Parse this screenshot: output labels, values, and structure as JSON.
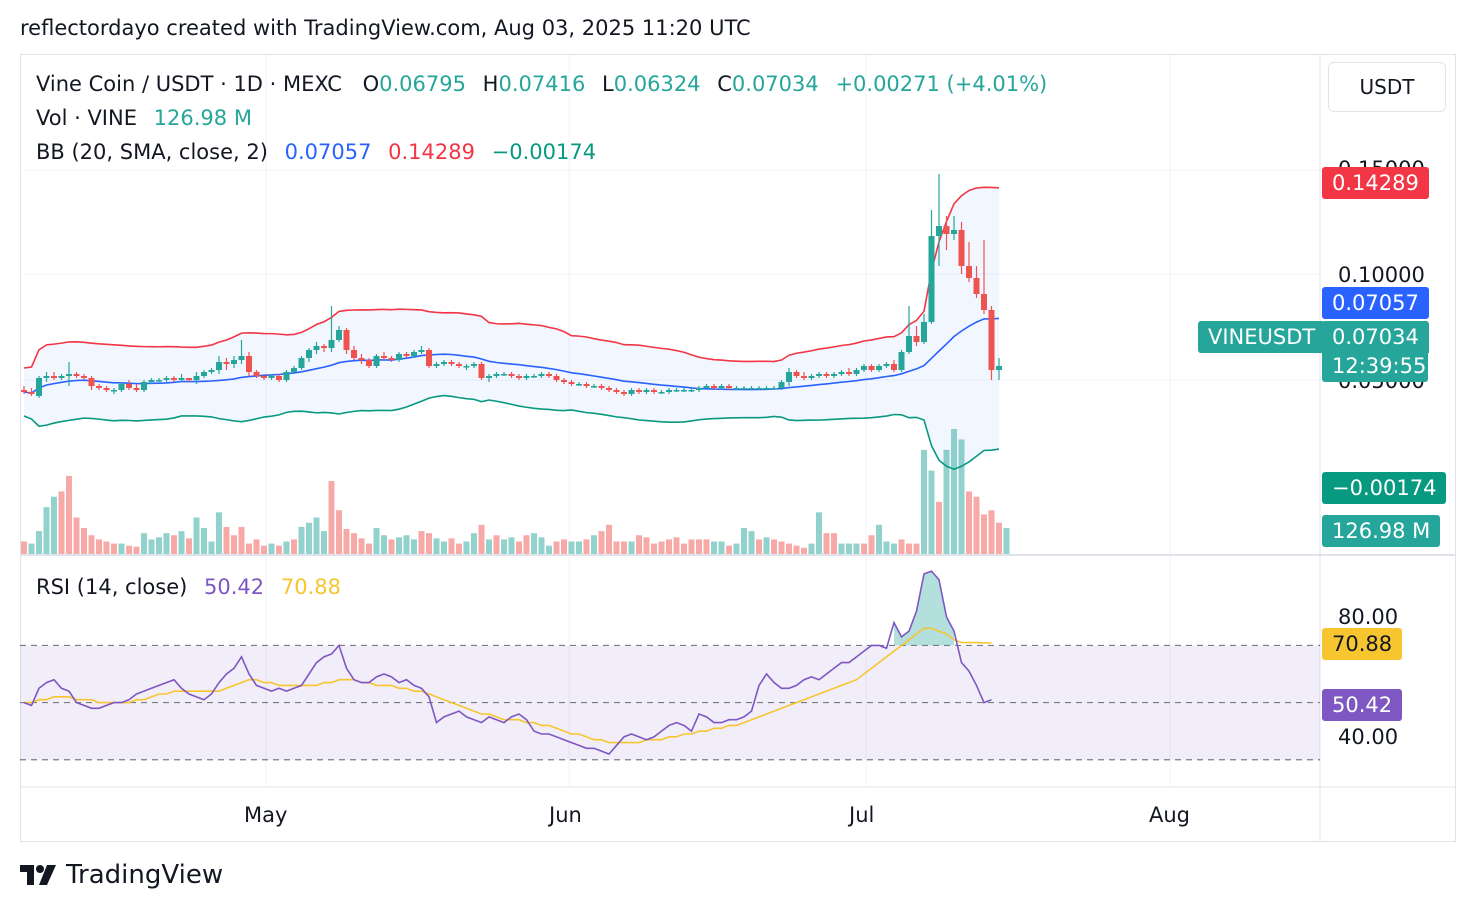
{
  "header": {
    "text": "reflectordayo created with TradingView.com, Aug 03, 2025 11:20 UTC"
  },
  "legend": {
    "symbol": "Vine Coin / USDT · 1D · MEXC",
    "o_label": "O",
    "o_value": "0.06795",
    "h_label": "H",
    "h_value": "0.07416",
    "l_label": "L",
    "l_value": "0.06324",
    "c_label": "C",
    "c_value": "0.07034",
    "change": "+0.00271 (+4.01%)",
    "vol_label": "Vol · VINE",
    "vol_value": "126.98 M",
    "bb_label": "BB (20, SMA, close, 2)",
    "bb_basis": "0.07057",
    "bb_upper": "0.14289",
    "bb_lower": "−0.00174",
    "rsi_label": "RSI (14, close)",
    "rsi_value": "50.42",
    "rsi_ma": "70.88"
  },
  "price_scale": {
    "unit": "USDT",
    "ticks": [
      "0.15000",
      "0.10000",
      "0.05000"
    ]
  },
  "rsi_scale": {
    "ticks": [
      "80.00",
      "40.00"
    ]
  },
  "time_axis": {
    "labels": [
      "May",
      "Jun",
      "Jul",
      "Aug"
    ]
  },
  "tags": {
    "bb_upper": "0.14289",
    "bb_basis": "0.07057",
    "symbol": "VINEUSDT",
    "last_price": "0.07034",
    "countdown": "12:39:55",
    "bb_lower": "−0.00174",
    "volume": "126.98 M",
    "rsi_ma": "70.88",
    "rsi": "50.42"
  },
  "colors": {
    "up": "#26a69a",
    "down": "#ef5350",
    "basis": "#2962ff",
    "upper": "#f23645",
    "lower": "#089981",
    "rsi": "#7e57c2",
    "rsi_ma": "#f7c530"
  },
  "footer": {
    "brand": "TradingView"
  },
  "chart_data": {
    "type": "candlestick",
    "title": "Vine Coin / USDT · 1D · MEXC",
    "x_start": "2025-03-29",
    "x_end": "2025-08-03",
    "ylim": [
      0.035,
      0.17
    ],
    "candles": [
      [
        0.058,
        0.06,
        0.056,
        0.057
      ],
      [
        0.057,
        0.059,
        0.055,
        0.056
      ],
      [
        0.055,
        0.065,
        0.054,
        0.064
      ],
      [
        0.064,
        0.067,
        0.062,
        0.065
      ],
      [
        0.065,
        0.067,
        0.063,
        0.064
      ],
      [
        0.064,
        0.066,
        0.063,
        0.065
      ],
      [
        0.065,
        0.072,
        0.06,
        0.066
      ],
      [
        0.066,
        0.067,
        0.064,
        0.065
      ],
      [
        0.065,
        0.066,
        0.063,
        0.064
      ],
      [
        0.064,
        0.065,
        0.058,
        0.06
      ],
      [
        0.06,
        0.061,
        0.058,
        0.059
      ],
      [
        0.059,
        0.06,
        0.057,
        0.058
      ],
      [
        0.058,
        0.059,
        0.056,
        0.058
      ],
      [
        0.058,
        0.062,
        0.057,
        0.061
      ],
      [
        0.061,
        0.063,
        0.058,
        0.059
      ],
      [
        0.059,
        0.061,
        0.057,
        0.058
      ],
      [
        0.058,
        0.063,
        0.057,
        0.062
      ],
      [
        0.062,
        0.064,
        0.061,
        0.063
      ],
      [
        0.063,
        0.064,
        0.062,
        0.063
      ],
      [
        0.063,
        0.065,
        0.062,
        0.064
      ],
      [
        0.064,
        0.065,
        0.062,
        0.063
      ],
      [
        0.063,
        0.066,
        0.062,
        0.064
      ],
      [
        0.064,
        0.064,
        0.062,
        0.063
      ],
      [
        0.063,
        0.067,
        0.061,
        0.065
      ],
      [
        0.065,
        0.068,
        0.064,
        0.067
      ],
      [
        0.067,
        0.069,
        0.066,
        0.068
      ],
      [
        0.068,
        0.075,
        0.066,
        0.072
      ],
      [
        0.072,
        0.074,
        0.068,
        0.071
      ],
      [
        0.071,
        0.075,
        0.069,
        0.073
      ],
      [
        0.073,
        0.083,
        0.071,
        0.075
      ],
      [
        0.075,
        0.077,
        0.065,
        0.067
      ],
      [
        0.067,
        0.068,
        0.064,
        0.065
      ],
      [
        0.065,
        0.066,
        0.063,
        0.064
      ],
      [
        0.064,
        0.066,
        0.063,
        0.065
      ],
      [
        0.065,
        0.066,
        0.062,
        0.063
      ],
      [
        0.063,
        0.068,
        0.062,
        0.067
      ],
      [
        0.067,
        0.07,
        0.066,
        0.069
      ],
      [
        0.069,
        0.075,
        0.068,
        0.074
      ],
      [
        0.074,
        0.079,
        0.072,
        0.078
      ],
      [
        0.078,
        0.082,
        0.076,
        0.08
      ],
      [
        0.08,
        0.081,
        0.077,
        0.079
      ],
      [
        0.079,
        0.1,
        0.077,
        0.083
      ],
      [
        0.083,
        0.09,
        0.082,
        0.088
      ],
      [
        0.088,
        0.089,
        0.076,
        0.078
      ],
      [
        0.078,
        0.08,
        0.073,
        0.074
      ],
      [
        0.074,
        0.076,
        0.071,
        0.073
      ],
      [
        0.073,
        0.074,
        0.069,
        0.07
      ],
      [
        0.07,
        0.076,
        0.069,
        0.075
      ],
      [
        0.075,
        0.077,
        0.073,
        0.074
      ],
      [
        0.074,
        0.075,
        0.072,
        0.073
      ],
      [
        0.073,
        0.077,
        0.072,
        0.076
      ],
      [
        0.076,
        0.077,
        0.074,
        0.075
      ],
      [
        0.075,
        0.078,
        0.074,
        0.077
      ],
      [
        0.077,
        0.08,
        0.076,
        0.078
      ],
      [
        0.078,
        0.079,
        0.069,
        0.07
      ],
      [
        0.07,
        0.072,
        0.069,
        0.071
      ],
      [
        0.071,
        0.073,
        0.07,
        0.072
      ],
      [
        0.072,
        0.073,
        0.07,
        0.071
      ],
      [
        0.071,
        0.072,
        0.069,
        0.07
      ],
      [
        0.07,
        0.071,
        0.068,
        0.07
      ],
      [
        0.07,
        0.072,
        0.069,
        0.071
      ],
      [
        0.071,
        0.072,
        0.063,
        0.064
      ],
      [
        0.064,
        0.066,
        0.062,
        0.065
      ],
      [
        0.065,
        0.067,
        0.064,
        0.066
      ],
      [
        0.066,
        0.067,
        0.065,
        0.066
      ],
      [
        0.066,
        0.067,
        0.064,
        0.065
      ],
      [
        0.065,
        0.066,
        0.063,
        0.064
      ],
      [
        0.064,
        0.066,
        0.063,
        0.065
      ],
      [
        0.065,
        0.066,
        0.064,
        0.065
      ],
      [
        0.065,
        0.067,
        0.064,
        0.066
      ],
      [
        0.066,
        0.067,
        0.064,
        0.065
      ],
      [
        0.065,
        0.066,
        0.062,
        0.063
      ],
      [
        0.063,
        0.064,
        0.061,
        0.062
      ],
      [
        0.062,
        0.063,
        0.06,
        0.061
      ],
      [
        0.061,
        0.062,
        0.06,
        0.061
      ],
      [
        0.061,
        0.062,
        0.059,
        0.06
      ],
      [
        0.06,
        0.061,
        0.059,
        0.06
      ],
      [
        0.06,
        0.061,
        0.058,
        0.059
      ],
      [
        0.059,
        0.06,
        0.057,
        0.058
      ],
      [
        0.058,
        0.059,
        0.056,
        0.057
      ],
      [
        0.057,
        0.058,
        0.055,
        0.056
      ],
      [
        0.056,
        0.059,
        0.055,
        0.058
      ],
      [
        0.058,
        0.059,
        0.056,
        0.057
      ],
      [
        0.057,
        0.059,
        0.056,
        0.058
      ],
      [
        0.058,
        0.059,
        0.056,
        0.057
      ],
      [
        0.057,
        0.058,
        0.056,
        0.057
      ],
      [
        0.057,
        0.059,
        0.056,
        0.058
      ],
      [
        0.058,
        0.059,
        0.057,
        0.058
      ],
      [
        0.058,
        0.059,
        0.057,
        0.058
      ],
      [
        0.058,
        0.059,
        0.057,
        0.058
      ],
      [
        0.058,
        0.06,
        0.057,
        0.059
      ],
      [
        0.059,
        0.061,
        0.058,
        0.06
      ],
      [
        0.06,
        0.061,
        0.058,
        0.059
      ],
      [
        0.059,
        0.061,
        0.058,
        0.06
      ],
      [
        0.06,
        0.061,
        0.058,
        0.059
      ],
      [
        0.059,
        0.06,
        0.058,
        0.059
      ],
      [
        0.059,
        0.06,
        0.058,
        0.059
      ],
      [
        0.059,
        0.06,
        0.058,
        0.059
      ],
      [
        0.059,
        0.06,
        0.058,
        0.059
      ],
      [
        0.059,
        0.06,
        0.058,
        0.059
      ],
      [
        0.059,
        0.06,
        0.058,
        0.059
      ],
      [
        0.059,
        0.063,
        0.058,
        0.062
      ],
      [
        0.062,
        0.069,
        0.06,
        0.067
      ],
      [
        0.067,
        0.068,
        0.064,
        0.065
      ],
      [
        0.065,
        0.067,
        0.063,
        0.064
      ],
      [
        0.064,
        0.066,
        0.063,
        0.065
      ],
      [
        0.065,
        0.067,
        0.064,
        0.066
      ],
      [
        0.066,
        0.067,
        0.064,
        0.065
      ],
      [
        0.065,
        0.067,
        0.064,
        0.066
      ],
      [
        0.066,
        0.068,
        0.065,
        0.067
      ],
      [
        0.067,
        0.069,
        0.065,
        0.066
      ],
      [
        0.066,
        0.069,
        0.065,
        0.068
      ],
      [
        0.068,
        0.071,
        0.067,
        0.07
      ],
      [
        0.07,
        0.071,
        0.067,
        0.068
      ],
      [
        0.068,
        0.071,
        0.067,
        0.07
      ],
      [
        0.07,
        0.072,
        0.069,
        0.071
      ],
      [
        0.071,
        0.073,
        0.067,
        0.068
      ],
      [
        0.068,
        0.078,
        0.067,
        0.077
      ],
      [
        0.077,
        0.1,
        0.076,
        0.085
      ],
      [
        0.085,
        0.09,
        0.08,
        0.082
      ],
      [
        0.082,
        0.096,
        0.081,
        0.092
      ],
      [
        0.092,
        0.148,
        0.091,
        0.135
      ],
      [
        0.135,
        0.166,
        0.12,
        0.14
      ],
      [
        0.14,
        0.145,
        0.128,
        0.136
      ],
      [
        0.136,
        0.145,
        0.133,
        0.138
      ],
      [
        0.138,
        0.142,
        0.116,
        0.12
      ],
      [
        0.12,
        0.132,
        0.112,
        0.114
      ],
      [
        0.114,
        0.12,
        0.104,
        0.106
      ],
      [
        0.106,
        0.133,
        0.096,
        0.098
      ],
      [
        0.098,
        0.1,
        0.063,
        0.068
      ],
      [
        0.068,
        0.074,
        0.063,
        0.07
      ]
    ],
    "volume": [
      [
        12,
        0
      ],
      [
        10,
        1
      ],
      [
        22,
        1
      ],
      [
        45,
        1
      ],
      [
        55,
        1
      ],
      [
        60,
        0
      ],
      [
        75,
        0
      ],
      [
        35,
        0
      ],
      [
        25,
        0
      ],
      [
        18,
        0
      ],
      [
        14,
        0
      ],
      [
        12,
        0
      ],
      [
        10,
        0
      ],
      [
        10,
        1
      ],
      [
        8,
        0
      ],
      [
        7,
        0
      ],
      [
        20,
        1
      ],
      [
        14,
        1
      ],
      [
        16,
        1
      ],
      [
        20,
        1
      ],
      [
        18,
        0
      ],
      [
        22,
        1
      ],
      [
        15,
        0
      ],
      [
        35,
        1
      ],
      [
        25,
        1
      ],
      [
        12,
        1
      ],
      [
        40,
        1
      ],
      [
        26,
        0
      ],
      [
        18,
        0
      ],
      [
        26,
        0
      ],
      [
        10,
        0
      ],
      [
        14,
        0
      ],
      [
        8,
        0
      ],
      [
        10,
        1
      ],
      [
        8,
        0
      ],
      [
        12,
        1
      ],
      [
        14,
        0
      ],
      [
        26,
        1
      ],
      [
        30,
        1
      ],
      [
        35,
        1
      ],
      [
        22,
        1
      ],
      [
        70,
        0
      ],
      [
        42,
        0
      ],
      [
        24,
        0
      ],
      [
        20,
        0
      ],
      [
        15,
        0
      ],
      [
        10,
        0
      ],
      [
        25,
        1
      ],
      [
        18,
        1
      ],
      [
        14,
        0
      ],
      [
        16,
        1
      ],
      [
        18,
        1
      ],
      [
        14,
        1
      ],
      [
        22,
        0
      ],
      [
        20,
        0
      ],
      [
        15,
        1
      ],
      [
        12,
        1
      ],
      [
        15,
        0
      ],
      [
        10,
        0
      ],
      [
        12,
        1
      ],
      [
        20,
        1
      ],
      [
        28,
        0
      ],
      [
        14,
        1
      ],
      [
        18,
        0
      ],
      [
        14,
        1
      ],
      [
        16,
        1
      ],
      [
        12,
        0
      ],
      [
        18,
        0
      ],
      [
        20,
        1
      ],
      [
        16,
        1
      ],
      [
        8,
        1
      ],
      [
        12,
        0
      ],
      [
        14,
        0
      ],
      [
        12,
        1
      ],
      [
        12,
        1
      ],
      [
        14,
        0
      ],
      [
        18,
        1
      ],
      [
        22,
        0
      ],
      [
        28,
        0
      ],
      [
        12,
        0
      ],
      [
        12,
        0
      ],
      [
        12,
        1
      ],
      [
        18,
        0
      ],
      [
        16,
        0
      ],
      [
        10,
        0
      ],
      [
        12,
        0
      ],
      [
        14,
        0
      ],
      [
        16,
        0
      ],
      [
        10,
        0
      ],
      [
        14,
        0
      ],
      [
        14,
        0
      ],
      [
        14,
        0
      ],
      [
        12,
        1
      ],
      [
        12,
        1
      ],
      [
        8,
        0
      ],
      [
        10,
        1
      ],
      [
        25,
        1
      ],
      [
        22,
        1
      ],
      [
        14,
        0
      ],
      [
        16,
        1
      ],
      [
        14,
        0
      ],
      [
        12,
        0
      ],
      [
        10,
        0
      ],
      [
        8,
        0
      ],
      [
        6,
        0
      ],
      [
        10,
        1
      ],
      [
        40,
        1
      ],
      [
        20,
        0
      ],
      [
        20,
        0
      ],
      [
        10,
        1
      ],
      [
        10,
        1
      ],
      [
        10,
        1
      ],
      [
        10,
        0
      ],
      [
        18,
        0
      ],
      [
        28,
        1
      ],
      [
        12,
        1
      ],
      [
        10,
        1
      ],
      [
        14,
        0
      ],
      [
        10,
        0
      ],
      [
        10,
        0
      ],
      [
        100,
        1
      ],
      [
        80,
        1
      ],
      [
        50,
        0
      ],
      [
        100,
        1
      ],
      [
        120,
        1
      ],
      [
        110,
        1
      ],
      [
        60,
        0
      ],
      [
        55,
        0
      ],
      [
        38,
        0
      ],
      [
        42,
        0
      ],
      [
        30,
        0
      ],
      [
        25,
        1
      ]
    ],
    "rsi": [
      50,
      49,
      55,
      57,
      58,
      55,
      54,
      50,
      49,
      48,
      48,
      49,
      50,
      50,
      51,
      53,
      54,
      55,
      56,
      57,
      58,
      55,
      53,
      52,
      51,
      53,
      57,
      60,
      62,
      66,
      60,
      56,
      55,
      54,
      55,
      54,
      55,
      56,
      60,
      64,
      66,
      67,
      70,
      62,
      58,
      57,
      57,
      59,
      60,
      59,
      57,
      58,
      56,
      55,
      52,
      43,
      45,
      46,
      47,
      45,
      44,
      43,
      45,
      44,
      43,
      45,
      46,
      44,
      40,
      39,
      39,
      38,
      37,
      36,
      35,
      34,
      34,
      33,
      32,
      35,
      38,
      39,
      38,
      37,
      38,
      40,
      42,
      43,
      42,
      40,
      46,
      45,
      43,
      43,
      44,
      44,
      45,
      47,
      56,
      60,
      57,
      55,
      55,
      56,
      58,
      59,
      58,
      60,
      62,
      64,
      64,
      66,
      68,
      70,
      70,
      69,
      78,
      73,
      75,
      82,
      95,
      96,
      93,
      80,
      75,
      64,
      61,
      56,
      50,
      51
    ],
    "rsi_ma": [
      50,
      50,
      51,
      51,
      52,
      52,
      52,
      51,
      51,
      51,
      50,
      50,
      50,
      50,
      50,
      51,
      51,
      52,
      53,
      53,
      54,
      54,
      54,
      54,
      54,
      54,
      54,
      55,
      56,
      57,
      58,
      58,
      57,
      57,
      56,
      56,
      56,
      56,
      56,
      56,
      57,
      57,
      58,
      58,
      58,
      57,
      57,
      56,
      56,
      56,
      55,
      55,
      54,
      54,
      53,
      52,
      51,
      50,
      49,
      48,
      47,
      46,
      46,
      45,
      44,
      44,
      44,
      43,
      43,
      42,
      42,
      41,
      40,
      39,
      39,
      38,
      37,
      37,
      36,
      36,
      36,
      36,
      36,
      37,
      37,
      37,
      38,
      38,
      39,
      39,
      40,
      40,
      41,
      41,
      42,
      42,
      43,
      44,
      45,
      46,
      47,
      48,
      49,
      50,
      51,
      52,
      53,
      54,
      55,
      56,
      57,
      58,
      60,
      62,
      64,
      66,
      68,
      70,
      72,
      74,
      76,
      76,
      75,
      74,
      72,
      71,
      71,
      71,
      70.88,
      70.88
    ],
    "rsi_levels": [
      70,
      50,
      30
    ],
    "rsi_ylim": [
      25,
      95
    ]
  }
}
